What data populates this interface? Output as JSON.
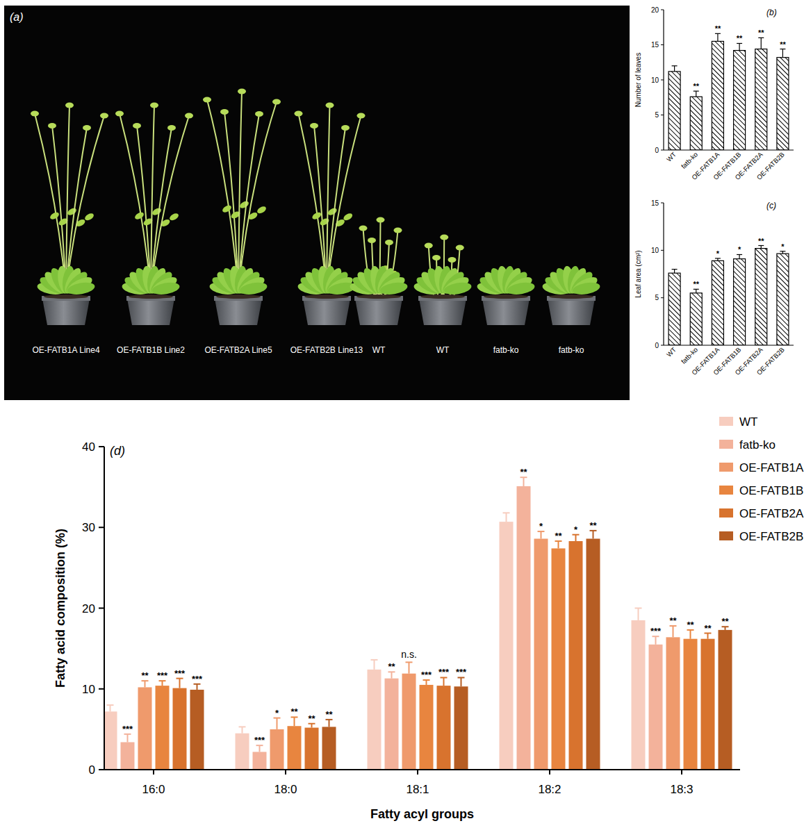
{
  "photo_panel": {
    "title": "(a)",
    "plant_labels": [
      "OE-FATB1A Line4",
      "OE-FATB1B Line2",
      "OE-FATB2A Line5",
      "OE-FATB2B Line13",
      "WT",
      "WT",
      "fatb-ko",
      "fatb-ko"
    ]
  },
  "chart_data": [
    {
      "type": "bar",
      "title": "(b)",
      "ylabel": "Number of leaves",
      "categories": [
        "WT",
        "fatb-ko",
        "OE-FATB1A",
        "OE-FATB1B",
        "OE-FATB2A",
        "OE-FATB2B"
      ],
      "values": [
        11.2,
        7.6,
        15.5,
        14.2,
        14.4,
        13.2
      ],
      "errors": [
        0.8,
        0.8,
        1.1,
        1.0,
        1.6,
        1.2
      ],
      "annotations": [
        null,
        "**",
        "**",
        "**",
        "**",
        "**"
      ],
      "color": "#000000",
      "ylim": [
        0,
        20
      ],
      "yticks": [
        0,
        5,
        10,
        15,
        20
      ],
      "grid": false
    },
    {
      "type": "bar",
      "title": "(c)",
      "ylabel": "Leaf area (cm²)",
      "categories": [
        "WT",
        "fatb-ko",
        "OE-FATB1A",
        "OE-FATB1B",
        "OE-FATB2A",
        "OE-FATB2B"
      ],
      "values": [
        7.6,
        5.5,
        8.9,
        9.1,
        10.2,
        9.65
      ],
      "errors": [
        0.4,
        0.4,
        0.25,
        0.45,
        0.3,
        0.25
      ],
      "annotations": [
        null,
        "**",
        "*",
        "*",
        "**",
        "*"
      ],
      "color": "#000000",
      "ylim": [
        0,
        15
      ],
      "yticks": [
        0,
        5,
        10,
        15
      ],
      "grid": false
    },
    {
      "type": "bar",
      "title": "(d)",
      "xlabel": "Fatty acyl groups",
      "ylabel": "Fatty acid composition (%)",
      "categories": [
        "16:0",
        "18:0",
        "18:1",
        "18:2",
        "18:3"
      ],
      "series": [
        {
          "name": "WT",
          "color": "#f7cdbf",
          "values": [
            7.2,
            4.5,
            12.4,
            30.7,
            18.5
          ],
          "errors": [
            0.8,
            0.8,
            1.2,
            1.1,
            1.5
          ],
          "annotations": [
            null,
            null,
            null,
            null,
            null
          ]
        },
        {
          "name": "fatb-ko",
          "color": "#f3b29b",
          "values": [
            3.4,
            2.2,
            11.3,
            35.1,
            15.5
          ],
          "errors": [
            1.0,
            0.8,
            0.8,
            1.1,
            1.0
          ],
          "annotations": [
            "***",
            "***",
            "**",
            "**",
            "***"
          ]
        },
        {
          "name": "OE-FATB1A",
          "color": "#ef9a6c",
          "values": [
            10.2,
            5.0,
            11.9,
            28.6,
            16.4
          ],
          "errors": [
            0.8,
            1.4,
            1.4,
            0.9,
            1.4
          ],
          "annotations": [
            "**",
            "*",
            "n.s.",
            "*",
            "**"
          ]
        },
        {
          "name": "OE-FATB1B",
          "color": "#e8853f",
          "values": [
            10.4,
            5.4,
            10.5,
            27.4,
            16.2
          ],
          "errors": [
            0.6,
            1.1,
            0.6,
            0.9,
            1.1
          ],
          "annotations": [
            "***",
            "**",
            "***",
            "**",
            "**"
          ]
        },
        {
          "name": "OE-FATB2A",
          "color": "#d8732e",
          "values": [
            10.1,
            5.2,
            10.4,
            28.3,
            16.2
          ],
          "errors": [
            1.2,
            0.5,
            1.0,
            0.8,
            0.7
          ],
          "annotations": [
            "***",
            "**",
            "***",
            "*",
            "**"
          ]
        },
        {
          "name": "OE-FATB2B",
          "color": "#b65d23",
          "values": [
            9.9,
            5.3,
            10.3,
            28.6,
            17.3
          ],
          "errors": [
            0.7,
            0.9,
            1.1,
            1.0,
            0.4
          ],
          "annotations": [
            "***",
            "**",
            "***",
            "**",
            "**"
          ]
        }
      ],
      "ylim": [
        0,
        40
      ],
      "yticks": [
        0,
        10,
        20,
        30,
        40
      ],
      "legend": "top-right",
      "grid": false
    }
  ]
}
